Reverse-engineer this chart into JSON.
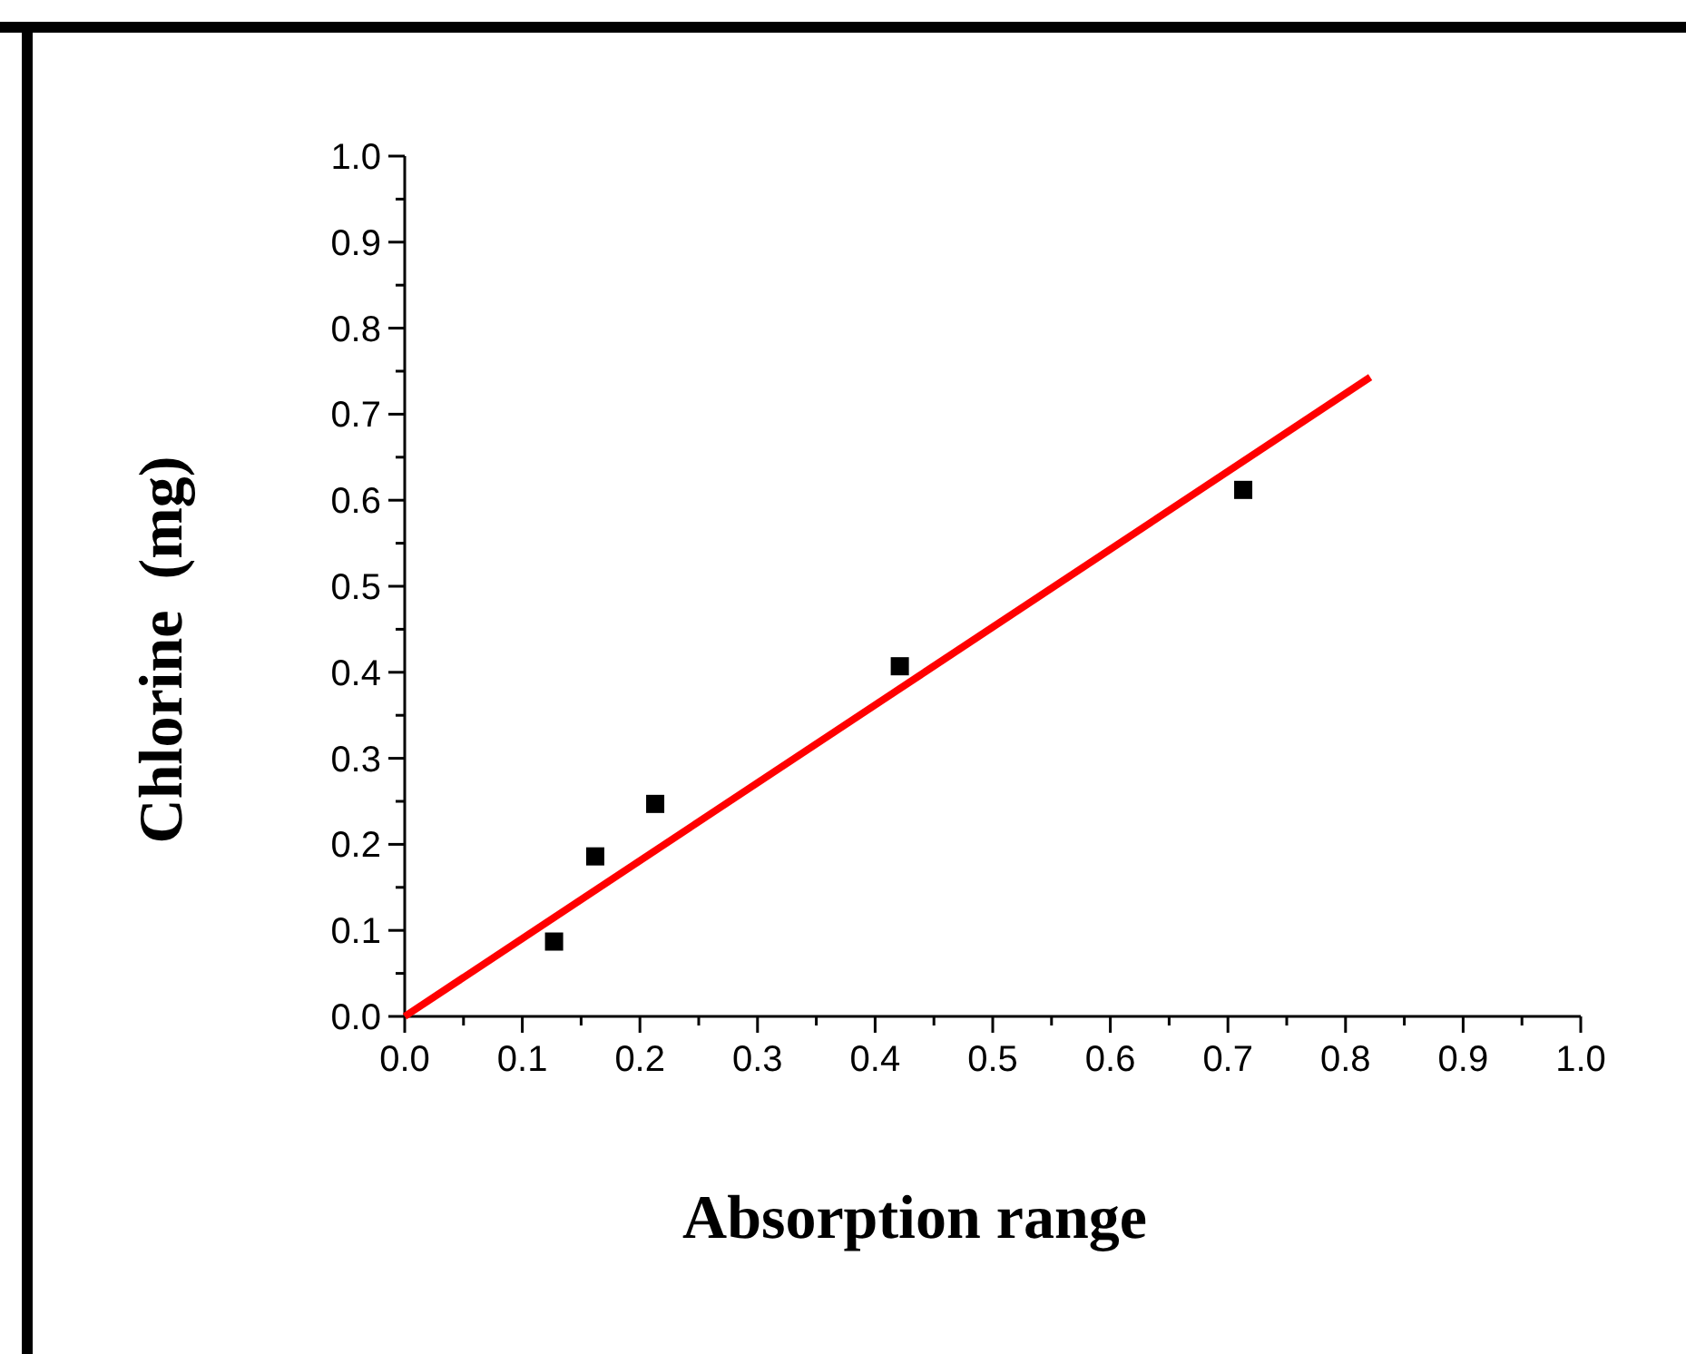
{
  "chart_data": {
    "type": "scatter",
    "xlabel": "Absorption range",
    "ylabel": "Chlorine  (mg)",
    "xlim": [
      0,
      1
    ],
    "ylim": [
      0,
      1
    ],
    "xticks": [
      {
        "value": 0,
        "label": "0.0"
      },
      {
        "value": 0.05,
        "label": null
      },
      {
        "value": 0.1,
        "label": "0.1"
      },
      {
        "value": 0.15,
        "label": null
      },
      {
        "value": 0.2,
        "label": "0.2"
      },
      {
        "value": 0.25,
        "label": null
      },
      {
        "value": 0.3,
        "label": "0.3"
      },
      {
        "value": 0.35,
        "label": null
      },
      {
        "value": 0.4,
        "label": "0.4"
      },
      {
        "value": 0.45,
        "label": null
      },
      {
        "value": 0.5,
        "label": "0.5"
      },
      {
        "value": 0.55,
        "label": null
      },
      {
        "value": 0.6,
        "label": "0.6"
      },
      {
        "value": 0.65,
        "label": null
      },
      {
        "value": 0.7,
        "label": "0.7"
      },
      {
        "value": 0.75,
        "label": null
      },
      {
        "value": 0.8,
        "label": "0.8"
      },
      {
        "value": 0.85,
        "label": null
      },
      {
        "value": 0.9,
        "label": "0.9"
      },
      {
        "value": 0.95,
        "label": null
      },
      {
        "value": 1,
        "label": "1.0"
      }
    ],
    "yticks": [
      {
        "value": 0,
        "label": "0.0"
      },
      {
        "value": 0.05,
        "label": null
      },
      {
        "value": 0.1,
        "label": "0.1"
      },
      {
        "value": 0.15,
        "label": null
      },
      {
        "value": 0.2,
        "label": "0.2"
      },
      {
        "value": 0.25,
        "label": null
      },
      {
        "value": 0.3,
        "label": "0.3"
      },
      {
        "value": 0.35,
        "label": null
      },
      {
        "value": 0.4,
        "label": "0.4"
      },
      {
        "value": 0.45,
        "label": null
      },
      {
        "value": 0.5,
        "label": "0.5"
      },
      {
        "value": 0.55,
        "label": null
      },
      {
        "value": 0.6,
        "label": "0.6"
      },
      {
        "value": 0.65,
        "label": null
      },
      {
        "value": 0.7,
        "label": "0.7"
      },
      {
        "value": 0.75,
        "label": null
      },
      {
        "value": 0.8,
        "label": "0.8"
      },
      {
        "value": 0.85,
        "label": null
      },
      {
        "value": 0.9,
        "label": "0.9"
      },
      {
        "value": 0.95,
        "label": null
      },
      {
        "value": 1,
        "label": "1.0"
      }
    ],
    "grid": false,
    "series": [
      {
        "color": "#000000",
        "marker": "square",
        "x": [
          0.127,
          0.162,
          0.213,
          0.421,
          0.713
        ],
        "values": [
          0.087,
          0.186,
          0.247,
          0.407,
          0.612
        ]
      },
      {
        "type": "line",
        "color": "#ff0000",
        "marker": "none",
        "line_style": "solid",
        "x": [
          0,
          0.821
        ],
        "values": [
          0,
          0.743
        ]
      }
    ]
  }
}
